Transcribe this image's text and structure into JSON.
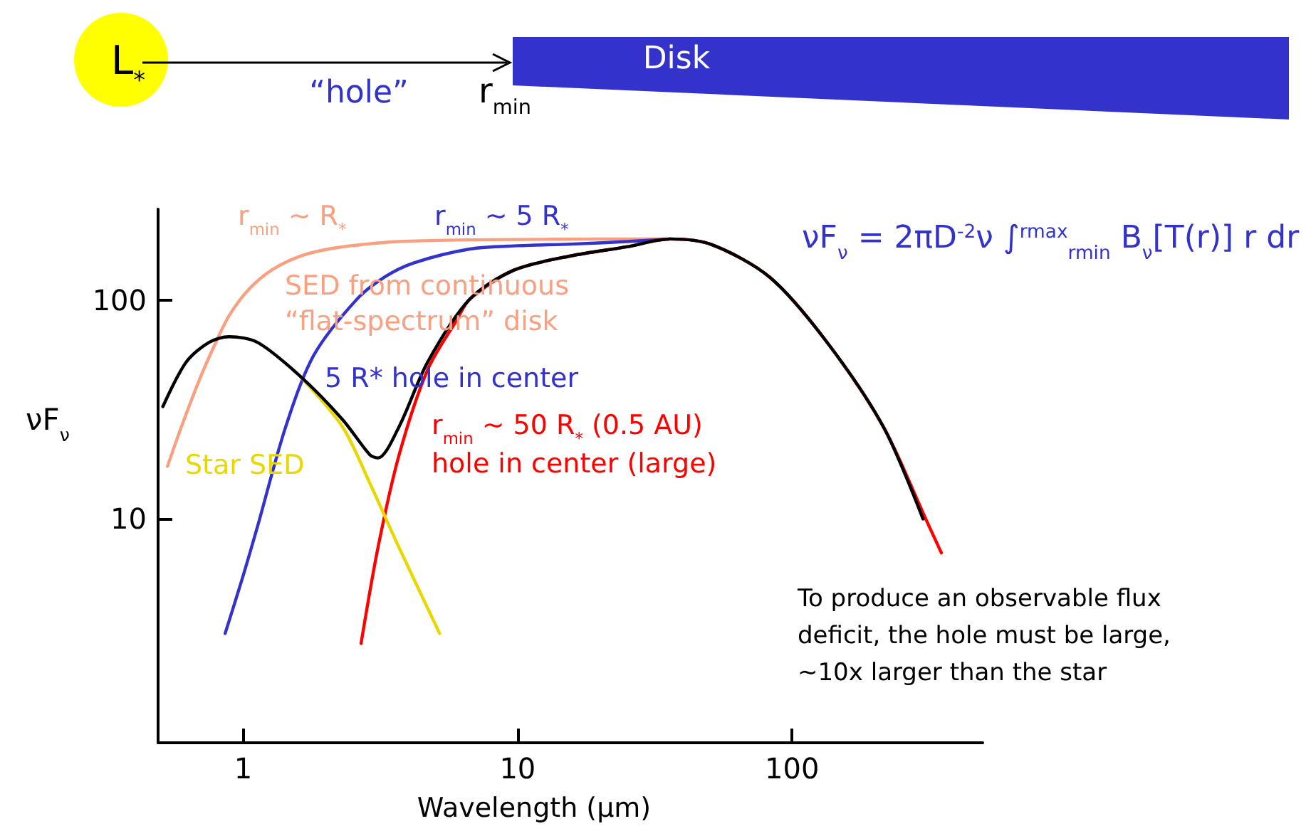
{
  "chart_data": {
    "type": "line",
    "xlabel": "Wavelength (μm)",
    "ylabel": "νF$_{ν}$",
    "log": "xy",
    "xlim": [
      0.49,
      495
    ],
    "ylim": [
      0.95,
      260
    ],
    "xticks": [
      1,
      10,
      100
    ],
    "yticks": [
      10,
      100
    ],
    "annotations": [
      "To produce an observable flux\ndeficit, the hole must be large,\n~10x larger than the star",
      "νF$_{ν}$ = 2πD$^{-2}$ν ∫$^{rmax}$$_{rmin}$ B$_{ν}$[T(r)] r dr",
      "L$_{*}$",
      "“hole”",
      "r$_{min}$",
      "Disk",
      "SED from continuous\n“flat-spectrum” disk",
      "5 R* hole in center"
    ],
    "series": [
      {
        "name": "r$_{min}$ ~ R$_{*}$",
        "color": "#f9a080",
        "x": [
          0.53,
          0.6,
          0.7,
          0.8,
          0.89,
          1.05,
          1.27,
          1.6,
          2.05,
          2.8,
          3.7,
          6,
          10,
          20,
          36
        ],
        "values": [
          17.4,
          27,
          44.6,
          65,
          85,
          112,
          137,
          158,
          171,
          180,
          185,
          188,
          189,
          190,
          190
        ]
      },
      {
        "name": "r$_{min}$ ~ 5 R$_{*}$",
        "color": "#3333cc",
        "x": [
          0.86,
          1.0,
          1.13,
          1.43,
          1.81,
          2.6,
          3.3,
          4.2,
          6.7,
          10,
          15.6,
          25,
          36
        ],
        "values": [
          3.0,
          5.5,
          9.3,
          26.4,
          56,
          101,
          128,
          148,
          171,
          177,
          180,
          185,
          190
        ]
      },
      {
        "name": "r$_{min}$ ~ 50 R$_{*}$ (0.5 AU)\nhole in center (large)",
        "color": "#ff0000",
        "x": [
          2.69,
          3.1,
          3.7,
          4.7,
          6,
          6.7,
          9.7,
          15.6,
          25,
          36,
          51,
          83,
          133,
          215,
          307,
          350
        ],
        "values": [
          2.7,
          7.4,
          19.6,
          48,
          81,
          101,
          137,
          159,
          175,
          190,
          179,
          127,
          65,
          26.4,
          10,
          7
        ]
      },
      {
        "name": "Star SED",
        "color": "#e8d800",
        "x": [
          1.61,
          2.3,
          2.9,
          3.7,
          5.2
        ],
        "values": [
          45,
          26.4,
          14.5,
          7.4,
          3.0
        ]
      },
      {
        "color": "#000000",
        "x": [
          0.51,
          0.62,
          0.75,
          0.89,
          1.13,
          1.61,
          2.3,
          2.9,
          3.1,
          3.7,
          4.7,
          6.7,
          9.7,
          15.6,
          25,
          36,
          51,
          83,
          133,
          215,
          300
        ],
        "values": [
          32.6,
          52,
          64,
          68,
          64,
          45,
          28.5,
          19.6,
          19,
          26.4,
          52,
          101,
          137,
          159,
          175,
          190,
          179,
          127,
          65,
          26.4,
          10
        ]
      }
    ]
  }
}
